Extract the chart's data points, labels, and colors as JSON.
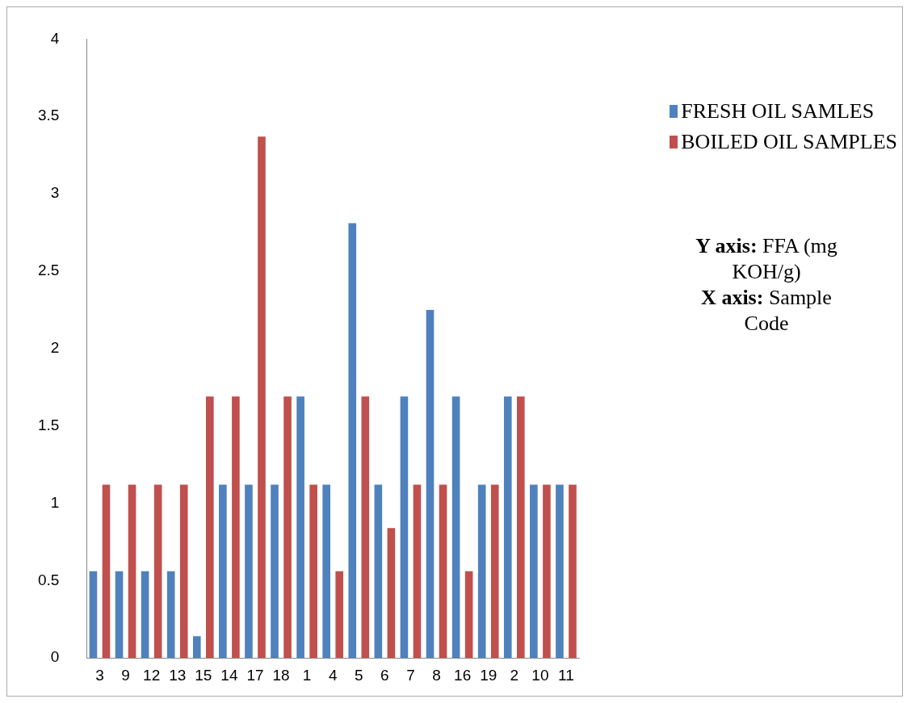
{
  "chart_data": {
    "type": "bar",
    "categories": [
      "3",
      "9",
      "12",
      "13",
      "15",
      "14",
      "17",
      "18",
      "1",
      "4",
      "5",
      "6",
      "7",
      "8",
      "16",
      "19",
      "2",
      "10",
      "11"
    ],
    "series": [
      {
        "name": "FRESH OIL SAMLES",
        "color": "#4f81bd",
        "values": [
          0.56,
          0.56,
          0.56,
          0.56,
          0.14,
          1.12,
          1.12,
          1.12,
          1.69,
          1.12,
          2.81,
          1.12,
          1.69,
          2.25,
          1.69,
          1.12,
          1.69,
          1.12,
          1.12
        ]
      },
      {
        "name": "BOILED OIL SAMPLES",
        "color": "#c0504d",
        "values": [
          1.12,
          1.12,
          1.12,
          1.12,
          1.69,
          1.69,
          3.37,
          1.69,
          1.12,
          0.56,
          1.69,
          0.84,
          1.12,
          1.12,
          0.56,
          1.12,
          1.69,
          1.12,
          1.12
        ]
      }
    ],
    "ylim": [
      0,
      4
    ],
    "yticks": [
      0,
      0.5,
      1,
      1.5,
      2,
      2.5,
      3,
      3.5,
      4
    ],
    "grid": false,
    "legend": "top right",
    "annotations": [
      "Y axis: FFA (mg KOH/g)",
      "X axis: Sample Code"
    ]
  }
}
